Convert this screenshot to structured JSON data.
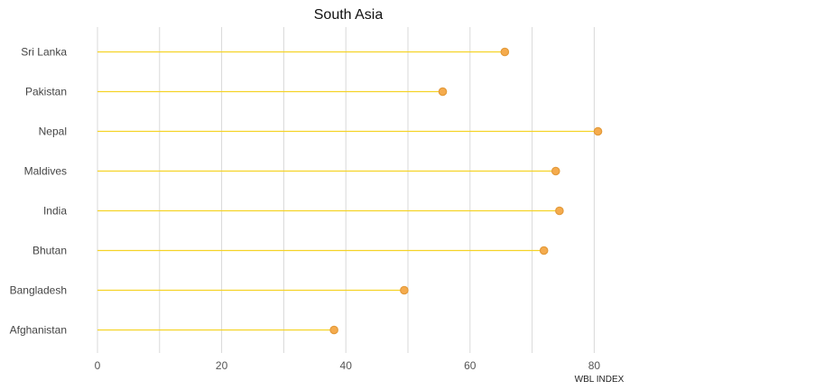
{
  "chart_data": {
    "type": "lollipop",
    "title": "South Asia",
    "xlabel": "WBL INDEX",
    "ylabel": "",
    "categories": [
      "Sri Lanka",
      "Pakistan",
      "Nepal",
      "Maldives",
      "India",
      "Bhutan",
      "Bangladesh",
      "Afghanistan"
    ],
    "values": [
      65.6,
      55.6,
      80.6,
      73.8,
      74.4,
      71.9,
      49.4,
      38.1
    ],
    "xlim": [
      0,
      80
    ],
    "xticks": [
      0,
      20,
      40,
      60,
      80
    ],
    "grid": true,
    "colors": {
      "stem": "#f5d327",
      "marker_fill": "#f5ab4d",
      "marker_stroke": "#e39a3a"
    }
  }
}
